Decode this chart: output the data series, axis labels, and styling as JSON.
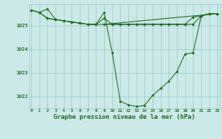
{
  "background_color": "#cce8e8",
  "grid_color": "#99cccc",
  "line_color": "#1a6b1a",
  "marker_color": "#1a6b1a",
  "xlabel": "Graphe pression niveau de la mer (hPa)",
  "xlabel_fontsize": 6.5,
  "xtick_labels": [
    "0",
    "1",
    "2",
    "3",
    "4",
    "5",
    "6",
    "7",
    "8",
    "9",
    "10",
    "11",
    "12",
    "13",
    "14",
    "15",
    "16",
    "17",
    "18",
    "19",
    "20",
    "21",
    "22",
    "23"
  ],
  "ytick_labels": [
    "1022",
    "1023",
    "1024",
    "1025"
  ],
  "ylim": [
    1021.5,
    1025.9
  ],
  "xlim": [
    -0.3,
    23.3
  ],
  "series": [
    [
      1025.65,
      1025.55,
      1025.3,
      1025.25,
      1025.2,
      1025.15,
      1025.1,
      1025.05,
      1025.05,
      1025.05,
      1025.05,
      1025.05,
      1025.05,
      1025.05,
      1025.05,
      1025.05,
      1025.05,
      1025.05,
      1025.05,
      1025.05,
      1025.05,
      1025.4,
      1025.5,
      1025.5
    ],
    [
      1025.65,
      1025.55,
      1025.3,
      1025.25,
      1025.2,
      1025.15,
      1025.1,
      1025.05,
      1025.05,
      1025.3,
      1025.05,
      1025.05,
      1025.05,
      1025.05,
      1025.05,
      1025.05,
      1025.05,
      1025.05,
      1025.05,
      1025.05,
      1025.35,
      1025.4,
      1025.5,
      1025.5
    ],
    [
      1025.65,
      1025.55,
      1025.7,
      1025.25,
      1025.2,
      1025.15,
      1025.1,
      1025.05,
      1025.05,
      1025.55,
      1023.85,
      1021.8,
      1021.65,
      1021.58,
      1021.63,
      1022.05,
      1022.35,
      1022.65,
      1023.05,
      1023.8,
      1023.85,
      1025.4,
      1025.5,
      1025.5
    ]
  ],
  "diag_series": {
    "x": [
      9,
      23
    ],
    "y": [
      1025.05,
      1025.5
    ]
  }
}
